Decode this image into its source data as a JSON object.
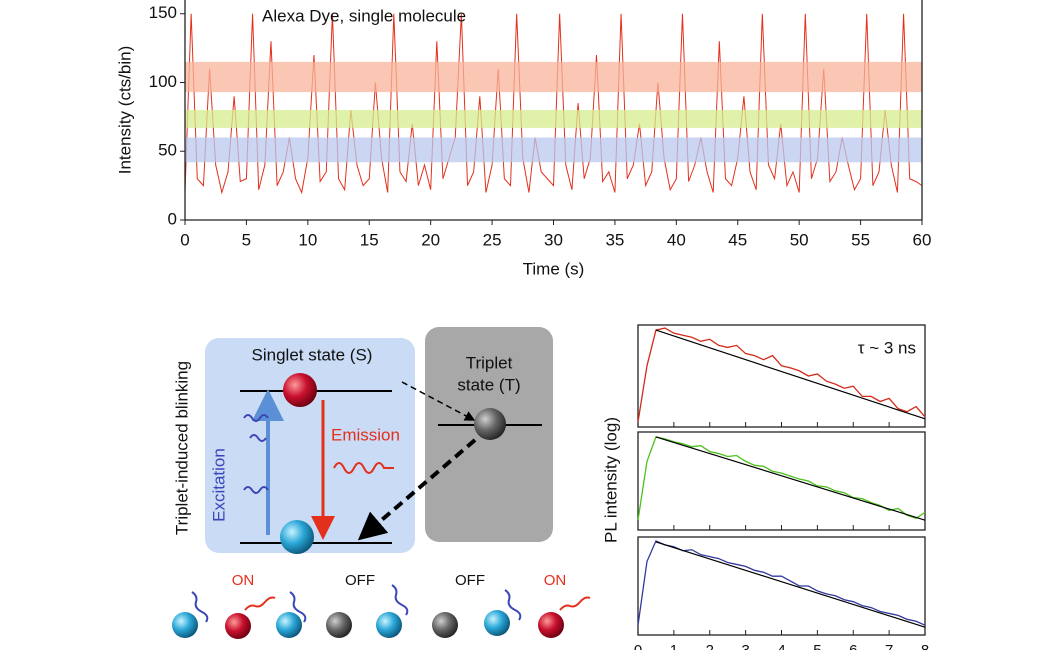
{
  "chart_data": [
    {
      "type": "line",
      "annotation": "Alexa Dye, single molecule",
      "xlabel": "Time (s)",
      "ylabel": "Intensity (cts/bin)",
      "x": [
        0,
        0.5,
        1,
        1.5,
        2,
        2.5,
        3,
        3.5,
        4,
        4.5,
        5,
        5.5,
        6,
        6.5,
        7,
        7.5,
        8,
        8.5,
        9,
        9.5,
        10,
        10.5,
        11,
        11.5,
        12,
        12.5,
        13,
        13.5,
        14,
        14.5,
        15,
        15.5,
        16,
        16.5,
        17,
        17.5,
        18,
        18.5,
        19,
        19.5,
        20,
        20.5,
        21,
        21.5,
        22,
        22.5,
        23,
        23.5,
        24,
        24.5,
        25,
        25.5,
        26,
        26.5,
        27,
        27.5,
        28,
        28.5,
        29,
        29.5,
        30,
        30.5,
        31,
        31.5,
        32,
        32.5,
        33,
        33.5,
        34,
        34.5,
        35,
        35.5,
        36,
        36.5,
        37,
        37.5,
        38,
        38.5,
        39,
        39.5,
        40,
        40.5,
        41,
        41.5,
        42,
        42.5,
        43,
        43.5,
        44,
        44.5,
        45,
        45.5,
        46,
        46.5,
        47,
        47.5,
        48,
        48.5,
        49,
        49.5,
        50,
        50.5,
        51,
        51.5,
        52,
        52.5,
        53,
        53.5,
        54,
        54.5,
        55,
        55.5,
        56,
        56.5,
        57,
        57.5,
        58,
        58.5,
        59,
        59.5,
        60
      ],
      "series": [
        {
          "color": "#e3301c",
          "values": [
            20,
            150,
            30,
            25,
            110,
            40,
            20,
            35,
            90,
            28,
            30,
            150,
            22,
            40,
            130,
            25,
            35,
            60,
            30,
            20,
            45,
            120,
            28,
            35,
            150,
            30,
            22,
            80,
            40,
            25,
            30,
            100,
            45,
            20,
            150,
            35,
            28,
            70,
            25,
            40,
            22,
            130,
            30,
            45,
            60,
            150,
            25,
            35,
            90,
            20,
            40,
            110,
            30,
            25,
            150,
            45,
            20,
            60,
            35,
            30,
            25,
            150,
            40,
            22,
            85,
            30,
            45,
            120,
            28,
            35,
            20,
            150,
            30,
            40,
            70,
            25,
            35,
            100,
            45,
            22,
            30,
            150,
            28,
            40,
            60,
            35,
            20,
            130,
            30,
            25,
            45,
            90,
            35,
            22,
            150,
            40,
            30,
            70,
            25,
            35,
            20,
            150,
            30,
            45,
            110,
            28,
            35,
            60,
            40,
            22,
            30,
            150,
            25,
            35,
            80,
            40,
            20,
            150,
            30,
            28,
            25
          ]
        }
      ],
      "bands": [
        {
          "from": 93,
          "to": 115,
          "color": "#f7b49a"
        },
        {
          "from": 67,
          "to": 80,
          "color": "#d6ec8e"
        },
        {
          "from": 42,
          "to": 60,
          "color": "#b8c8ee"
        }
      ],
      "xlim": [
        0,
        60
      ],
      "xticks": [
        0,
        5,
        10,
        15,
        20,
        25,
        30,
        35,
        40,
        45,
        50,
        55,
        60
      ],
      "ylim": [
        0,
        160
      ],
      "yticks": [
        0,
        50,
        100,
        150
      ]
    },
    {
      "type": "line",
      "stacked_panels": true,
      "ylabel": "PL intensity (log)",
      "annotation": "τ ~ 3 ns",
      "x": [
        0,
        0.25,
        0.5,
        0.75,
        1,
        1.25,
        1.5,
        1.75,
        2,
        2.25,
        2.5,
        2.75,
        3,
        3.25,
        3.5,
        3.75,
        4,
        4.25,
        4.5,
        4.75,
        5,
        5.25,
        5.5,
        5.75,
        6,
        6.25,
        6.5,
        6.75,
        7,
        7.25,
        7.5,
        7.75,
        8
      ],
      "fit_x": [
        0.5,
        8
      ],
      "fit_color": "#000000",
      "series": [
        {
          "color": "#d42a1a",
          "values": [
            0.05,
            0.6,
            0.95,
            0.97,
            0.92,
            0.9,
            0.88,
            0.84,
            0.86,
            0.8,
            0.78,
            0.8,
            0.72,
            0.7,
            0.66,
            0.7,
            0.6,
            0.58,
            0.55,
            0.5,
            0.52,
            0.45,
            0.42,
            0.38,
            0.4,
            0.3,
            0.3,
            0.25,
            0.28,
            0.18,
            0.15,
            0.2,
            0.1
          ],
          "fit": [
            0.95,
            0.08
          ]
        },
        {
          "color": "#4cc21a",
          "values": [
            0.1,
            0.7,
            0.95,
            0.93,
            0.9,
            0.88,
            0.85,
            0.86,
            0.8,
            0.78,
            0.75,
            0.76,
            0.7,
            0.66,
            0.65,
            0.6,
            0.58,
            0.55,
            0.52,
            0.5,
            0.45,
            0.44,
            0.4,
            0.38,
            0.33,
            0.32,
            0.28,
            0.25,
            0.2,
            0.22,
            0.15,
            0.12,
            0.18
          ],
          "fit": [
            0.95,
            0.1
          ]
        },
        {
          "color": "#3338a0",
          "values": [
            0.1,
            0.75,
            0.96,
            0.92,
            0.9,
            0.86,
            0.87,
            0.82,
            0.8,
            0.78,
            0.74,
            0.72,
            0.7,
            0.66,
            0.64,
            0.6,
            0.6,
            0.55,
            0.5,
            0.5,
            0.45,
            0.42,
            0.4,
            0.36,
            0.34,
            0.3,
            0.28,
            0.24,
            0.22,
            0.2,
            0.16,
            0.14,
            0.1
          ],
          "fit": [
            0.95,
            0.08
          ]
        }
      ],
      "xlim": [
        0,
        8
      ],
      "xticks": [
        0,
        1,
        2,
        3,
        4,
        5,
        6,
        7,
        8
      ],
      "ylim": [
        0,
        1
      ]
    }
  ],
  "diagram": {
    "title": "Triplet-induced blinking",
    "singlet": "Singlet state (S)",
    "triplet": [
      "Triplet",
      "state (T)"
    ],
    "excitation": "Excitation",
    "emission": "Emission",
    "states": [
      "ON",
      "OFF",
      "OFF",
      "ON"
    ]
  }
}
